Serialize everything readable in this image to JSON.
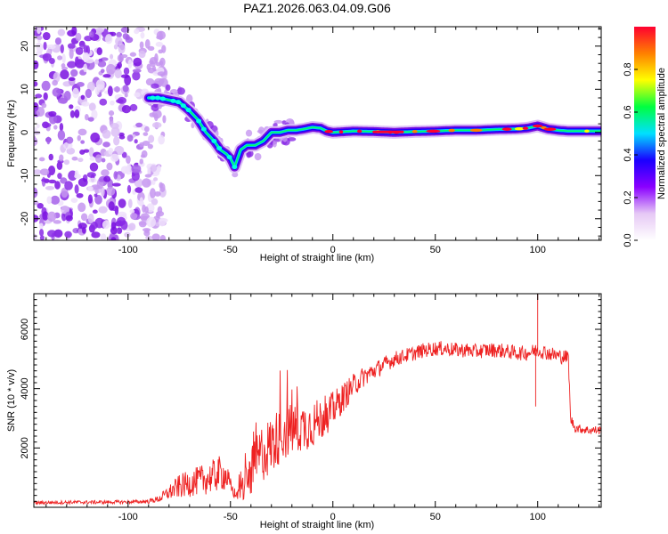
{
  "title": "PAZ1.2026.063.04.09.G06",
  "chart_data": [
    {
      "type": "heatmap",
      "name": "spectrogram",
      "xlabel": "Height of straight line (km)",
      "ylabel": "Frequency (Hz)",
      "xlim": [
        -146,
        131
      ],
      "ylim": [
        -25,
        24.5
      ],
      "xticks": [
        -100,
        -50,
        0,
        50,
        100
      ],
      "xtick_labels": [
        "-100",
        "-50",
        "0",
        "50",
        "100"
      ],
      "yticks": [
        -20,
        -10,
        0,
        10,
        20
      ],
      "ytick_labels": [
        "-20",
        "-10",
        "0",
        "10",
        "20"
      ],
      "grid": false,
      "colorbar": {
        "label": "Normalized spectral amplitude",
        "range": [
          0,
          1
        ],
        "ticks": [
          0.0,
          0.2,
          0.4,
          0.6,
          0.8
        ],
        "tick_labels": [
          "0.0",
          "0.2",
          "0.4",
          "0.6",
          "0.8"
        ],
        "colormap": "rainbow-with-white-low",
        "colors": [
          "#ffffff",
          "#e6c8f5",
          "#8a00ff",
          "#1a00ff",
          "#00e0ff",
          "#00ff40",
          "#ffff00",
          "#ff8000",
          "#ff0030"
        ]
      },
      "noise_region": {
        "x": [
          -146,
          -82
        ],
        "freq_range": [
          -25,
          24.5
        ]
      },
      "ridge": {
        "x": [
          -90,
          -85,
          -80,
          -75,
          -70,
          -66,
          -62,
          -58,
          -55,
          -52,
          -50,
          -48,
          -45,
          -42,
          -38,
          -34,
          -30,
          -26,
          -22,
          -18,
          -14,
          -10,
          -6,
          -3,
          0,
          10,
          20,
          30,
          40,
          50,
          60,
          70,
          80,
          90,
          95,
          100,
          105,
          110,
          115,
          120,
          125,
          131
        ],
        "freq": [
          8,
          8,
          7.5,
          7,
          5,
          3,
          0,
          -2,
          -4,
          -5,
          -6,
          -8,
          -4,
          -3,
          -3,
          -2,
          0,
          0,
          0.5,
          0.5,
          0.8,
          1.2,
          1,
          0.3,
          0,
          0.3,
          0.2,
          0,
          0.2,
          0.3,
          0.5,
          0.5,
          0.7,
          0.8,
          1,
          1.5,
          0.8,
          0.5,
          0.3,
          0.3,
          0.3,
          0.3
        ]
      }
    },
    {
      "type": "line",
      "name": "snr",
      "xlabel": "Height of straight line (km)",
      "ylabel": "SNR (10 * v/v)",
      "xlim": [
        -146,
        131
      ],
      "ylim": [
        0,
        7200
      ],
      "xticks": [
        -100,
        -50,
        0,
        50,
        100
      ],
      "xtick_labels": [
        "-100",
        "-50",
        "0",
        "50",
        "100"
      ],
      "yticks": [
        2000,
        4000,
        6000
      ],
      "ytick_labels": [
        "2000",
        "4000",
        "6000"
      ],
      "color": "#ee2222",
      "grid": false,
      "series": [
        {
          "name": "SNR",
          "x": [
            -146,
            -140,
            -130,
            -120,
            -110,
            -100,
            -95,
            -90,
            -85,
            -80,
            -75,
            -70,
            -65,
            -60,
            -55,
            -52,
            -50,
            -47,
            -45,
            -42,
            -38,
            -35,
            -30,
            -25,
            -20,
            -15,
            -10,
            -5,
            0,
            5,
            10,
            15,
            20,
            25,
            30,
            35,
            40,
            45,
            50,
            55,
            60,
            65,
            70,
            75,
            80,
            85,
            90,
            95,
            100,
            105,
            110,
            115,
            116,
            118,
            120,
            125,
            131
          ],
          "y": [
            150,
            160,
            170,
            170,
            175,
            180,
            185,
            200,
            280,
            500,
            700,
            800,
            900,
            1000,
            1150,
            1050,
            700,
            350,
            500,
            900,
            1400,
            1800,
            2100,
            2500,
            2600,
            2700,
            2800,
            3000,
            3300,
            3700,
            4100,
            4400,
            4600,
            4800,
            5000,
            5100,
            5200,
            5300,
            5350,
            5350,
            5300,
            5300,
            5250,
            5300,
            5300,
            5250,
            5200,
            5200,
            5300,
            5200,
            5100,
            5050,
            3000,
            2700,
            2650,
            2600,
            2600
          ],
          "noise_amplitude": [
            60,
            60,
            60,
            60,
            60,
            60,
            60,
            70,
            120,
            250,
            400,
            450,
            500,
            550,
            600,
            500,
            300,
            150,
            400,
            700,
            900,
            1000,
            1000,
            950,
            900,
            850,
            800,
            700,
            600,
            500,
            400,
            350,
            300,
            280,
            260,
            250,
            250,
            250,
            250,
            250,
            250,
            250,
            250,
            250,
            250,
            250,
            250,
            250,
            250,
            250,
            250,
            250,
            200,
            150,
            150,
            150,
            150
          ]
        }
      ],
      "annotations": [
        {
          "x": 100,
          "y": 7200,
          "text": ""
        },
        {
          "x": 99,
          "y": 3400,
          "text": ""
        }
      ]
    }
  ]
}
